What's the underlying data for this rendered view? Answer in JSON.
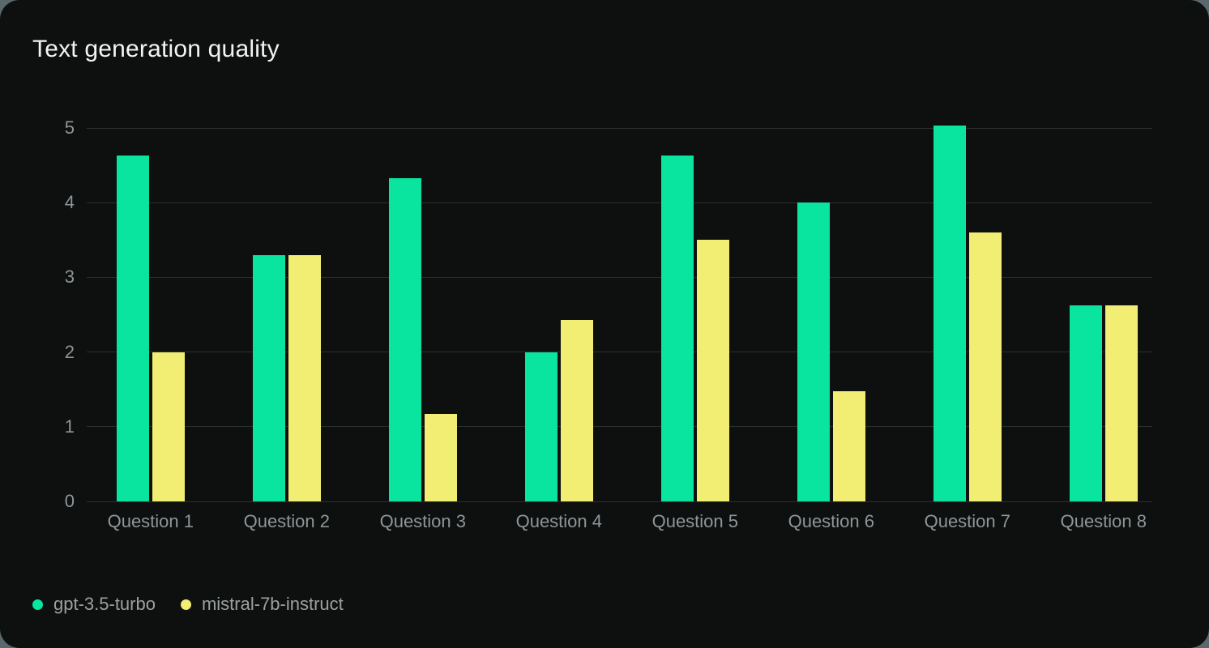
{
  "title": "Text generation quality",
  "colors": {
    "outer_background": "#5a676d",
    "card_background": "#0e100f",
    "title_text": "#f2f4f3",
    "gridline": "#2a2e2c",
    "axis_tick_text": "#8f9598",
    "legend_text": "#9ba1a0",
    "series_green": "#09e49e",
    "series_yellow": "#f1ee73"
  },
  "chart_data": {
    "type": "bar",
    "title": "Text generation quality",
    "categories": [
      "Question 1",
      "Question 2",
      "Question 3",
      "Question 4",
      "Question 5",
      "Question 6",
      "Question 7",
      "Question 8"
    ],
    "series": [
      {
        "name": "gpt-3.5-turbo",
        "color": "#09e49e",
        "values": [
          4.63,
          3.3,
          4.33,
          2.0,
          4.63,
          4.0,
          5.03,
          2.63
        ]
      },
      {
        "name": "mistral-7b-instruct",
        "color": "#f1ee73",
        "values": [
          2.0,
          3.3,
          1.17,
          2.43,
          3.5,
          1.47,
          3.6,
          2.63
        ]
      }
    ],
    "xlabel": "",
    "ylabel": "",
    "ylim": [
      0,
      5
    ],
    "yticks": [
      0,
      1,
      2,
      3,
      4,
      5
    ],
    "grid": "horizontal",
    "legend_position": "bottom-left"
  }
}
